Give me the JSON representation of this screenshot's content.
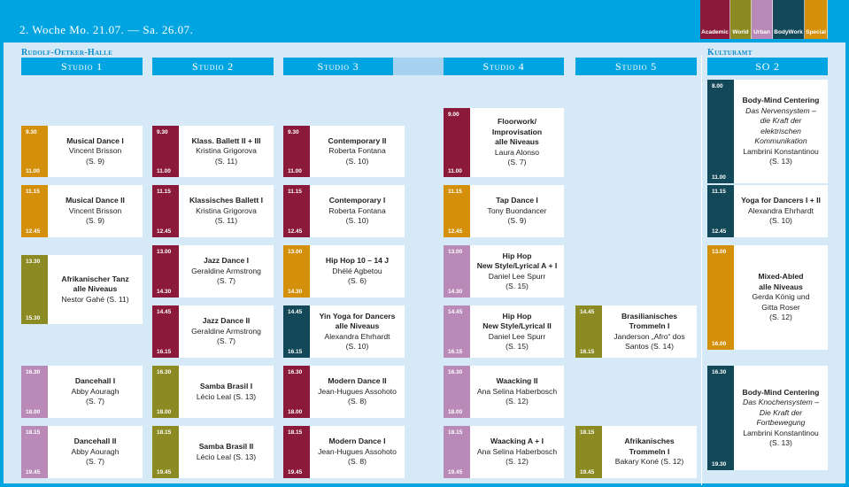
{
  "header": {
    "title": "2. Woche Mo. 21.07. — Sa. 26.07."
  },
  "legend": [
    {
      "label": "Academic",
      "color": "#8b1a3a"
    },
    {
      "label": "World",
      "color": "#8c8a22"
    },
    {
      "label": "Urban",
      "color": "#b98ab8"
    },
    {
      "label": "BodyWork",
      "color": "#124858"
    },
    {
      "label": "Special",
      "color": "#d4900a"
    }
  ],
  "venues": {
    "left": "Rudolf-Oetker-Halle",
    "right": "Kulturamt"
  },
  "columns": [
    "Studio 1",
    "Studio 2",
    "Studio 3",
    "Studio 4",
    "Studio 5",
    "SO 2"
  ],
  "slots": [
    {
      "col": 0,
      "row": "r1",
      "start": "9.30",
      "end": "11.00",
      "color": "#d4900a",
      "lines": [
        {
          "t": "Musical Dance I",
          "s": "b"
        },
        {
          "t": "Vincent Brisson",
          "s": "n"
        },
        {
          "t": "(S. 9)",
          "s": "n"
        }
      ]
    },
    {
      "col": 0,
      "row": "r2",
      "start": "11.15",
      "end": "12.45",
      "color": "#d4900a",
      "lines": [
        {
          "t": "Musical Dance II",
          "s": "b"
        },
        {
          "t": "Vincent Brisson",
          "s": "n"
        },
        {
          "t": "(S. 9)",
          "s": "n"
        }
      ]
    },
    {
      "col": 0,
      "row": "r3a",
      "start": "13.30",
      "end": "15.30",
      "color": "#8c8a22",
      "lines": [
        {
          "t": "Afrikanischer Tanz",
          "s": "b"
        },
        {
          "t": "alle Niveaus",
          "s": "b"
        },
        {
          "t": "Nestor Gahé (S. 11)",
          "s": "n"
        }
      ]
    },
    {
      "col": 0,
      "row": "r5",
      "start": "16.30",
      "end": "18.00",
      "color": "#b98ab8",
      "lines": [
        {
          "t": "Dancehall I",
          "s": "b"
        },
        {
          "t": "Abby Aouragh",
          "s": "n"
        },
        {
          "t": "(S. 7)",
          "s": "n"
        }
      ]
    },
    {
      "col": 0,
      "row": "r6",
      "start": "18.15",
      "end": "19.45",
      "color": "#b98ab8",
      "lines": [
        {
          "t": "Dancehall II",
          "s": "b"
        },
        {
          "t": "Abby Aouragh",
          "s": "n"
        },
        {
          "t": "(S. 7)",
          "s": "n"
        }
      ]
    },
    {
      "col": 1,
      "row": "r1",
      "start": "9.30",
      "end": "11.00",
      "color": "#8b1a3a",
      "lines": [
        {
          "t": "Klass. Ballett II + III",
          "s": "b"
        },
        {
          "t": "Kristina Grigorova",
          "s": "n"
        },
        {
          "t": "(S. 11)",
          "s": "n"
        }
      ]
    },
    {
      "col": 1,
      "row": "r2",
      "start": "11.15",
      "end": "12.45",
      "color": "#8b1a3a",
      "lines": [
        {
          "t": "Klassisches Ballett I",
          "s": "b"
        },
        {
          "t": "Kristina Grigorova",
          "s": "n"
        },
        {
          "t": "(S. 11)",
          "s": "n"
        }
      ]
    },
    {
      "col": 1,
      "row": "r3",
      "start": "13.00",
      "end": "14.30",
      "color": "#8b1a3a",
      "lines": [
        {
          "t": "Jazz Dance I",
          "s": "b"
        },
        {
          "t": "Geraldine Armstrong",
          "s": "n"
        },
        {
          "t": "(S. 7)",
          "s": "n"
        }
      ]
    },
    {
      "col": 1,
      "row": "r4",
      "start": "14.45",
      "end": "16.15",
      "color": "#8b1a3a",
      "lines": [
        {
          "t": "Jazz Dance II",
          "s": "b"
        },
        {
          "t": "Geraldine Armstrong",
          "s": "n"
        },
        {
          "t": "(S. 7)",
          "s": "n"
        }
      ]
    },
    {
      "col": 1,
      "row": "r5",
      "start": "16.30",
      "end": "18.00",
      "color": "#8c8a22",
      "lines": [
        {
          "t": "Samba Brasil I",
          "s": "b"
        },
        {
          "t": "Lécio Leal (S. 13)",
          "s": "n"
        }
      ]
    },
    {
      "col": 1,
      "row": "r6",
      "start": "18.15",
      "end": "19.45",
      "color": "#8c8a22",
      "lines": [
        {
          "t": "Samba  Brasil II",
          "s": "b"
        },
        {
          "t": "Lécio Leal (S. 13)",
          "s": "n"
        }
      ]
    },
    {
      "col": 2,
      "row": "r1",
      "start": "9.30",
      "end": "11.00",
      "color": "#8b1a3a",
      "lines": [
        {
          "t": "Contemporary II",
          "s": "b"
        },
        {
          "t": "Roberta Fontana",
          "s": "n"
        },
        {
          "t": "(S. 10)",
          "s": "n"
        }
      ]
    },
    {
      "col": 2,
      "row": "r2",
      "start": "11.15",
      "end": "12.45",
      "color": "#8b1a3a",
      "lines": [
        {
          "t": "Contemporary I",
          "s": "b"
        },
        {
          "t": "Roberta Fontana",
          "s": "n"
        },
        {
          "t": "(S. 10)",
          "s": "n"
        }
      ]
    },
    {
      "col": 2,
      "row": "r3",
      "start": "13.00",
      "end": "14.30",
      "color": "#d4900a",
      "lines": [
        {
          "t": "Hip Hop 10 – 14 J",
          "s": "b"
        },
        {
          "t": "Dhélé Agbetou",
          "s": "n"
        },
        {
          "t": "(S. 6)",
          "s": "n"
        }
      ]
    },
    {
      "col": 2,
      "row": "r4",
      "start": "14.45",
      "end": "16.15",
      "color": "#124858",
      "lines": [
        {
          "t": "Yin Yoga for Dancers",
          "s": "b"
        },
        {
          "t": "alle Niveaus",
          "s": "b"
        },
        {
          "t": "Alexandra Ehrhardt",
          "s": "n"
        },
        {
          "t": "(S. 10)",
          "s": "n"
        }
      ]
    },
    {
      "col": 2,
      "row": "r5",
      "start": "16.30",
      "end": "18.00",
      "color": "#8b1a3a",
      "lines": [
        {
          "t": "Modern Dance II",
          "s": "b"
        },
        {
          "t": "Jean-Hugues Assohoto",
          "s": "n"
        },
        {
          "t": "(S. 8)",
          "s": "n"
        }
      ]
    },
    {
      "col": 2,
      "row": "r6",
      "start": "18.15",
      "end": "19.45",
      "color": "#8b1a3a",
      "lines": [
        {
          "t": "Modern Dance I",
          "s": "b"
        },
        {
          "t": "Jean-Hugues Assohoto",
          "s": "n"
        },
        {
          "t": "(S. 8)",
          "s": "n"
        }
      ]
    },
    {
      "col": 3,
      "row": "r1b",
      "start": "9.00",
      "end": "11.00",
      "color": "#8b1a3a",
      "lines": [
        {
          "t": "Floorwork/",
          "s": "b"
        },
        {
          "t": "Improvisation",
          "s": "b"
        },
        {
          "t": "alle Niveaus",
          "s": "b"
        },
        {
          "t": "Laura Alonso",
          "s": "n"
        },
        {
          "t": "(S. 7)",
          "s": "n"
        }
      ]
    },
    {
      "col": 3,
      "row": "r2",
      "start": "11.15",
      "end": "12.45",
      "color": "#d4900a",
      "lines": [
        {
          "t": "Tap Dance I",
          "s": "b"
        },
        {
          "t": "Tony Buondancer",
          "s": "n"
        },
        {
          "t": "(S. 9)",
          "s": "n"
        }
      ]
    },
    {
      "col": 3,
      "row": "r3",
      "start": "13.00",
      "end": "14.30",
      "color": "#b98ab8",
      "lines": [
        {
          "t": "Hip Hop",
          "s": "b"
        },
        {
          "t": "New Style/Lyrical A + I",
          "s": "b"
        },
        {
          "t": "Daniel Lee Spurr",
          "s": "n"
        },
        {
          "t": "(S. 15)",
          "s": "n"
        }
      ]
    },
    {
      "col": 3,
      "row": "r4",
      "start": "14.45",
      "end": "16.15",
      "color": "#b98ab8",
      "lines": [
        {
          "t": "Hip Hop",
          "s": "b"
        },
        {
          "t": "New Style/Lyrical II",
          "s": "b"
        },
        {
          "t": "Daniel Lee Spurr",
          "s": "n"
        },
        {
          "t": "(S. 15)",
          "s": "n"
        }
      ]
    },
    {
      "col": 3,
      "row": "r5",
      "start": "16.30",
      "end": "18.00",
      "color": "#b98ab8",
      "lines": [
        {
          "t": "Waacking II",
          "s": "b"
        },
        {
          "t": "Ana Selina Haberbosch",
          "s": "n"
        },
        {
          "t": "(S. 12)",
          "s": "n"
        }
      ]
    },
    {
      "col": 3,
      "row": "r6",
      "start": "18.15",
      "end": "19.45",
      "color": "#b98ab8",
      "lines": [
        {
          "t": "Waacking A + I",
          "s": "b"
        },
        {
          "t": "Ana Selina Haberbosch",
          "s": "n"
        },
        {
          "t": "(S. 12)",
          "s": "n"
        }
      ]
    },
    {
      "col": 4,
      "row": "r4",
      "start": "14.45",
      "end": "16.15",
      "color": "#8c8a22",
      "lines": [
        {
          "t": "Brasilianisches",
          "s": "b"
        },
        {
          "t": "Trommeln I",
          "s": "b"
        },
        {
          "t": "Janderson „Afro“ dos",
          "s": "n"
        },
        {
          "t": "Santos (S. 14)",
          "s": "n"
        }
      ]
    },
    {
      "col": 4,
      "row": "r6",
      "start": "18.15",
      "end": "19.45",
      "color": "#8c8a22",
      "lines": [
        {
          "t": "Afrikanisches",
          "s": "b"
        },
        {
          "t": "Trommeln I",
          "s": "b"
        },
        {
          "t": "Bakary Koné (S. 12)",
          "s": "n"
        }
      ]
    },
    {
      "col": 5,
      "row": "so1",
      "start": "8.00",
      "end": "11.00",
      "color": "#124858",
      "lines": [
        {
          "t": "Body-Mind Centering",
          "s": "b"
        },
        {
          "t": "Das Nervensystem –",
          "s": "i"
        },
        {
          "t": "die Kraft der",
          "s": "i"
        },
        {
          "t": "elektrischen",
          "s": "i"
        },
        {
          "t": "Kommunikation",
          "s": "i"
        },
        {
          "t": "Lambrini Konstantinou",
          "s": "n"
        },
        {
          "t": "(S. 13)",
          "s": "n"
        }
      ]
    },
    {
      "col": 5,
      "row": "r2",
      "start": "11.15",
      "end": "12.45",
      "color": "#124858",
      "lines": [
        {
          "t": "Yoga for Dancers I + II",
          "s": "b"
        },
        {
          "t": "Alexandra Ehrhardt",
          "s": "n"
        },
        {
          "t": "(S. 10)",
          "s": "n"
        }
      ]
    },
    {
      "col": 5,
      "row": "so3",
      "start": "13.00",
      "end": "16.00",
      "color": "#d4900a",
      "lines": [
        {
          "t": "Mixed-Abled",
          "s": "b"
        },
        {
          "t": "alle Niveaus",
          "s": "b"
        },
        {
          "t": "Gerda König und",
          "s": "n"
        },
        {
          "t": "Gitta Roser",
          "s": "n"
        },
        {
          "t": "(S. 12)",
          "s": "n"
        }
      ]
    },
    {
      "col": 5,
      "row": "so5",
      "start": "16.30",
      "end": "19.30",
      "color": "#124858",
      "lines": [
        {
          "t": "Body-Mind Centering",
          "s": "b"
        },
        {
          "t": "Das Knochensystem –",
          "s": "i"
        },
        {
          "t": "Die Kraft der",
          "s": "i"
        },
        {
          "t": "Fortbewegung",
          "s": "i"
        },
        {
          "t": "Lambrini Konstantinou",
          "s": "n"
        },
        {
          "t": "(S. 13)",
          "s": "n"
        }
      ]
    }
  ]
}
